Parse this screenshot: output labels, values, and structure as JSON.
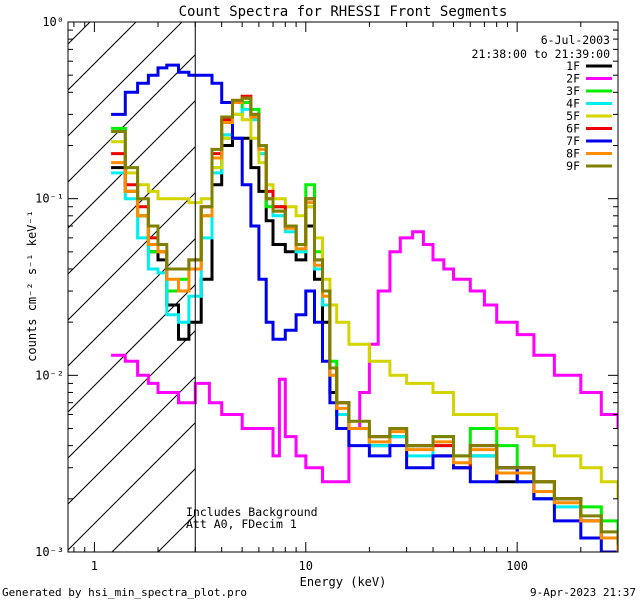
{
  "footer": {
    "generated_by": "Generated by hsi_min_spectra_plot.pro",
    "timestamp": "9-Apr-2023 21:37"
  },
  "chart_data": {
    "type": "line",
    "title": "Count Spectra for RHESSI Front Segments",
    "xlabel": "Energy (keV)",
    "ylabel": "counts cm⁻² s⁻¹ keV⁻¹",
    "xscale": "log",
    "yscale": "log",
    "xlim": [
      0.75,
      300
    ],
    "ylim": [
      0.001,
      1.0
    ],
    "x_ticks": [
      {
        "value": 1,
        "label": "1"
      },
      {
        "value": 10,
        "label": "10"
      },
      {
        "value": 100,
        "label": "100"
      }
    ],
    "y_ticks": [
      {
        "value": 0.001,
        "label": "10⁻³"
      },
      {
        "value": 0.01,
        "label": "10⁻²"
      },
      {
        "value": 0.1,
        "label": "10⁻¹"
      },
      {
        "value": 1,
        "label": "10⁰"
      }
    ],
    "date": "6-Jul-2003",
    "time_range": "21:38:00 to 21:39:00",
    "legend_position": "top-right",
    "annotations": [
      "Includes Background",
      "Att A0, FDecim 1"
    ],
    "hatched_region_x": [
      0.75,
      3.0
    ],
    "series": [
      {
        "name": "1F",
        "color": "#000000",
        "x": [
          1.2,
          1.4,
          1.6,
          1.8,
          2.0,
          2.2,
          2.5,
          2.8,
          3.2,
          3.6,
          4.0,
          4.5,
          5.0,
          5.5,
          6.0,
          6.5,
          7.0,
          8.0,
          9.0,
          10.0,
          11.0,
          12.0,
          13.0,
          14.0,
          16.0,
          20.0,
          25.0,
          30.0,
          40.0,
          50.0,
          60.0,
          80.0,
          100.0,
          120.0,
          150.0,
          200.0,
          250.0,
          300.0
        ],
        "values": [
          0.15,
          0.11,
          0.08,
          0.05,
          0.045,
          0.025,
          0.016,
          0.02,
          0.035,
          0.12,
          0.2,
          0.22,
          0.22,
          0.15,
          0.11,
          0.075,
          0.055,
          0.05,
          0.045,
          0.07,
          0.035,
          0.02,
          0.008,
          0.006,
          0.005,
          0.004,
          0.0045,
          0.004,
          0.0035,
          0.003,
          0.0035,
          0.0025,
          0.003,
          0.002,
          0.002,
          0.0015,
          0.0012,
          0.001
        ]
      },
      {
        "name": "2F",
        "color": "#ff00ff",
        "x": [
          1.2,
          1.4,
          1.6,
          1.8,
          2.0,
          2.5,
          3.0,
          3.5,
          4.0,
          5.0,
          6.0,
          7.0,
          7.5,
          8.0,
          9.0,
          10.0,
          12.0,
          14.0,
          16.0,
          18.0,
          20.0,
          22.0,
          25.0,
          28.0,
          32.0,
          36.0,
          40.0,
          45.0,
          50.0,
          60.0,
          70.0,
          80.0,
          100.0,
          120.0,
          150.0,
          200.0,
          250.0,
          300.0
        ],
        "values": [
          0.013,
          0.012,
          0.01,
          0.009,
          0.008,
          0.007,
          0.009,
          0.007,
          0.006,
          0.005,
          0.005,
          0.0035,
          0.0095,
          0.0045,
          0.0035,
          0.003,
          0.0025,
          0.0025,
          0.005,
          0.008,
          0.015,
          0.03,
          0.05,
          0.06,
          0.065,
          0.055,
          0.045,
          0.04,
          0.035,
          0.03,
          0.025,
          0.02,
          0.017,
          0.013,
          0.01,
          0.008,
          0.006,
          0.005
        ]
      },
      {
        "name": "3F",
        "color": "#00ee00",
        "x": [
          1.2,
          1.4,
          1.6,
          1.8,
          2.0,
          2.2,
          2.5,
          2.8,
          3.2,
          3.6,
          4.0,
          4.5,
          5.0,
          5.5,
          6.0,
          6.5,
          7.0,
          8.0,
          9.0,
          10.0,
          11.0,
          12.0,
          13.0,
          14.0,
          16.0,
          20.0,
          25.0,
          30.0,
          40.0,
          50.0,
          60.0,
          80.0,
          100.0,
          120.0,
          150.0,
          200.0,
          250.0,
          300.0
        ],
        "values": [
          0.25,
          0.11,
          0.08,
          0.05,
          0.05,
          0.03,
          0.035,
          0.04,
          0.08,
          0.15,
          0.22,
          0.3,
          0.35,
          0.32,
          0.2,
          0.09,
          0.09,
          0.07,
          0.05,
          0.12,
          0.05,
          0.03,
          0.012,
          0.007,
          0.005,
          0.0045,
          0.005,
          0.004,
          0.0045,
          0.0035,
          0.005,
          0.004,
          0.003,
          0.0025,
          0.002,
          0.0018,
          0.0015,
          0.0012
        ]
      },
      {
        "name": "4F",
        "color": "#00eeee",
        "x": [
          1.2,
          1.4,
          1.6,
          1.8,
          2.0,
          2.2,
          2.5,
          2.8,
          3.2,
          3.6,
          4.0,
          4.5,
          5.0,
          5.5,
          6.0,
          6.5,
          7.0,
          8.0,
          9.0,
          10.0,
          11.0,
          12.0,
          13.0,
          14.0,
          16.0,
          20.0,
          25.0,
          30.0,
          40.0,
          50.0,
          60.0,
          80.0,
          100.0,
          120.0,
          150.0,
          200.0,
          250.0,
          300.0
        ],
        "values": [
          0.14,
          0.1,
          0.06,
          0.04,
          0.038,
          0.022,
          0.02,
          0.028,
          0.06,
          0.14,
          0.23,
          0.3,
          0.32,
          0.28,
          0.18,
          0.1,
          0.08,
          0.065,
          0.05,
          0.09,
          0.04,
          0.025,
          0.01,
          0.006,
          0.005,
          0.004,
          0.0045,
          0.0035,
          0.004,
          0.003,
          0.0035,
          0.003,
          0.0025,
          0.002,
          0.0018,
          0.0015,
          0.0012,
          0.001
        ]
      },
      {
        "name": "5F",
        "color": "#d4d400",
        "x": [
          1.2,
          1.4,
          1.6,
          1.8,
          2.0,
          2.2,
          2.5,
          2.8,
          3.2,
          3.6,
          4.0,
          4.5,
          5.0,
          5.5,
          6.0,
          6.5,
          7.0,
          8.0,
          9.0,
          10.0,
          11.0,
          12.0,
          13.0,
          14.0,
          16.0,
          20.0,
          25.0,
          30.0,
          40.0,
          50.0,
          60.0,
          80.0,
          100.0,
          120.0,
          150.0,
          200.0,
          250.0,
          300.0
        ],
        "values": [
          0.21,
          0.14,
          0.12,
          0.11,
          0.1,
          0.1,
          0.1,
          0.095,
          0.1,
          0.15,
          0.22,
          0.3,
          0.28,
          0.22,
          0.16,
          0.12,
          0.1,
          0.09,
          0.08,
          0.09,
          0.06,
          0.035,
          0.025,
          0.02,
          0.015,
          0.012,
          0.01,
          0.009,
          0.008,
          0.006,
          0.006,
          0.005,
          0.0045,
          0.004,
          0.0035,
          0.003,
          0.0025,
          0.002
        ]
      },
      {
        "name": "6F",
        "color": "#ee0000",
        "x": [
          1.2,
          1.4,
          1.6,
          1.8,
          2.0,
          2.2,
          2.5,
          2.8,
          3.2,
          3.6,
          4.0,
          4.5,
          5.0,
          5.5,
          6.0,
          6.5,
          7.0,
          8.0,
          9.0,
          10.0,
          11.0,
          12.0,
          13.0,
          14.0,
          16.0,
          20.0,
          25.0,
          30.0,
          40.0,
          50.0,
          60.0,
          80.0,
          100.0,
          120.0,
          150.0,
          200.0,
          250.0,
          300.0
        ],
        "values": [
          0.18,
          0.12,
          0.09,
          0.06,
          0.05,
          0.04,
          0.04,
          0.045,
          0.09,
          0.18,
          0.28,
          0.36,
          0.38,
          0.3,
          0.2,
          0.11,
          0.09,
          0.07,
          0.055,
          0.1,
          0.045,
          0.03,
          0.011,
          0.007,
          0.005,
          0.0045,
          0.005,
          0.004,
          0.004,
          0.003,
          0.004,
          0.003,
          0.003,
          0.0025,
          0.002,
          0.0015,
          0.0012,
          0.001
        ]
      },
      {
        "name": "7F",
        "color": "#0000ee",
        "x": [
          1.2,
          1.4,
          1.6,
          1.8,
          2.0,
          2.2,
          2.5,
          2.8,
          3.2,
          3.6,
          4.0,
          4.5,
          5.0,
          5.5,
          6.0,
          6.5,
          7.0,
          8.0,
          9.0,
          10.0,
          11.0,
          12.0,
          13.0,
          14.0,
          16.0,
          20.0,
          25.0,
          30.0,
          40.0,
          50.0,
          60.0,
          80.0,
          100.0,
          120.0,
          150.0,
          200.0,
          250.0,
          300.0
        ],
        "values": [
          0.3,
          0.4,
          0.45,
          0.5,
          0.55,
          0.57,
          0.52,
          0.5,
          0.5,
          0.45,
          0.35,
          0.22,
          0.12,
          0.07,
          0.035,
          0.02,
          0.016,
          0.018,
          0.022,
          0.03,
          0.02,
          0.012,
          0.007,
          0.005,
          0.004,
          0.0035,
          0.004,
          0.003,
          0.0035,
          0.003,
          0.0025,
          0.003,
          0.0025,
          0.002,
          0.0015,
          0.0012,
          0.001,
          0.001
        ]
      },
      {
        "name": "8F",
        "color": "#ff8c00",
        "x": [
          1.2,
          1.4,
          1.6,
          1.8,
          2.0,
          2.2,
          2.5,
          2.8,
          3.2,
          3.6,
          4.0,
          4.5,
          5.0,
          5.5,
          6.0,
          6.5,
          7.0,
          8.0,
          9.0,
          10.0,
          11.0,
          12.0,
          13.0,
          14.0,
          16.0,
          20.0,
          25.0,
          30.0,
          40.0,
          50.0,
          60.0,
          80.0,
          100.0,
          120.0,
          150.0,
          200.0,
          250.0,
          300.0
        ],
        "values": [
          0.16,
          0.11,
          0.08,
          0.055,
          0.05,
          0.035,
          0.03,
          0.04,
          0.08,
          0.17,
          0.27,
          0.35,
          0.37,
          0.29,
          0.19,
          0.1,
          0.085,
          0.068,
          0.052,
          0.095,
          0.042,
          0.028,
          0.01,
          0.0065,
          0.005,
          0.0042,
          0.0048,
          0.0038,
          0.0042,
          0.0032,
          0.0038,
          0.0028,
          0.0028,
          0.0022,
          0.0019,
          0.0015,
          0.0012,
          0.001
        ]
      },
      {
        "name": "9F",
        "color": "#808000",
        "x": [
          1.2,
          1.4,
          1.6,
          1.8,
          2.0,
          2.2,
          2.5,
          2.8,
          3.2,
          3.6,
          4.0,
          4.5,
          5.0,
          5.5,
          6.0,
          6.5,
          7.0,
          8.0,
          9.0,
          10.0,
          11.0,
          12.0,
          13.0,
          14.0,
          16.0,
          20.0,
          25.0,
          30.0,
          40.0,
          50.0,
          60.0,
          80.0,
          100.0,
          120.0,
          150.0,
          200.0,
          250.0,
          300.0
        ],
        "values": [
          0.24,
          0.15,
          0.1,
          0.07,
          0.055,
          0.04,
          0.04,
          0.045,
          0.09,
          0.19,
          0.29,
          0.36,
          0.37,
          0.3,
          0.2,
          0.1,
          0.085,
          0.07,
          0.055,
          0.1,
          0.045,
          0.03,
          0.011,
          0.007,
          0.0055,
          0.0045,
          0.005,
          0.004,
          0.0045,
          0.0035,
          0.004,
          0.003,
          0.003,
          0.0025,
          0.002,
          0.0016,
          0.0013,
          0.0011
        ]
      }
    ]
  }
}
